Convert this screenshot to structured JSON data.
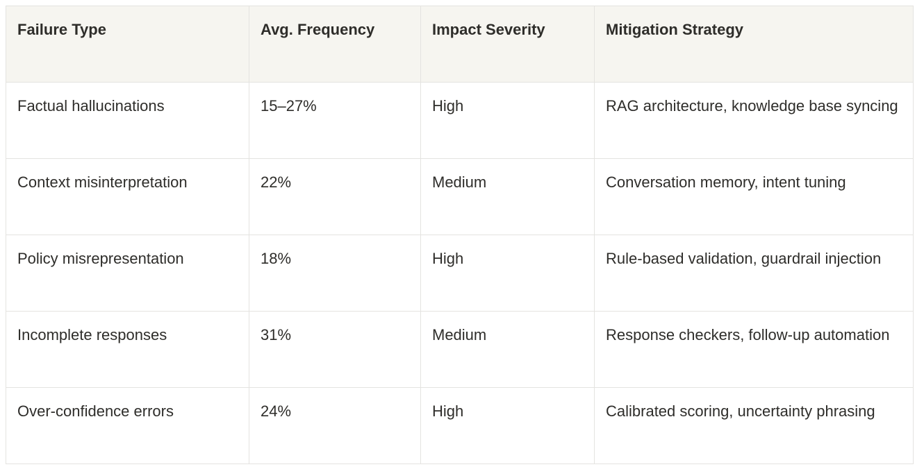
{
  "table": {
    "columns": [
      "Failure Type",
      "Avg. Frequency",
      "Impact Severity",
      "Mitigation Strategy"
    ],
    "rows": [
      [
        "Factual hallucinations",
        "15–27%",
        "High",
        "RAG architecture, knowledge base syncing"
      ],
      [
        "Context misinterpretation",
        "22%",
        "Medium",
        "Conversation memory, intent tuning"
      ],
      [
        "Policy misrepresentation",
        "18%",
        "High",
        "Rule-based validation, guardrail injection"
      ],
      [
        "Incomplete responses",
        "31%",
        "Medium",
        "Response checkers, follow-up automation"
      ],
      [
        "Over-confidence errors",
        "24%",
        "High",
        "Calibrated scoring, uncertainty phrasing"
      ]
    ]
  },
  "colors": {
    "header_bg": "#f6f5f0",
    "border": "#e4e3e0",
    "text": "#2e2d2a",
    "page_bg": "#ffffff"
  }
}
